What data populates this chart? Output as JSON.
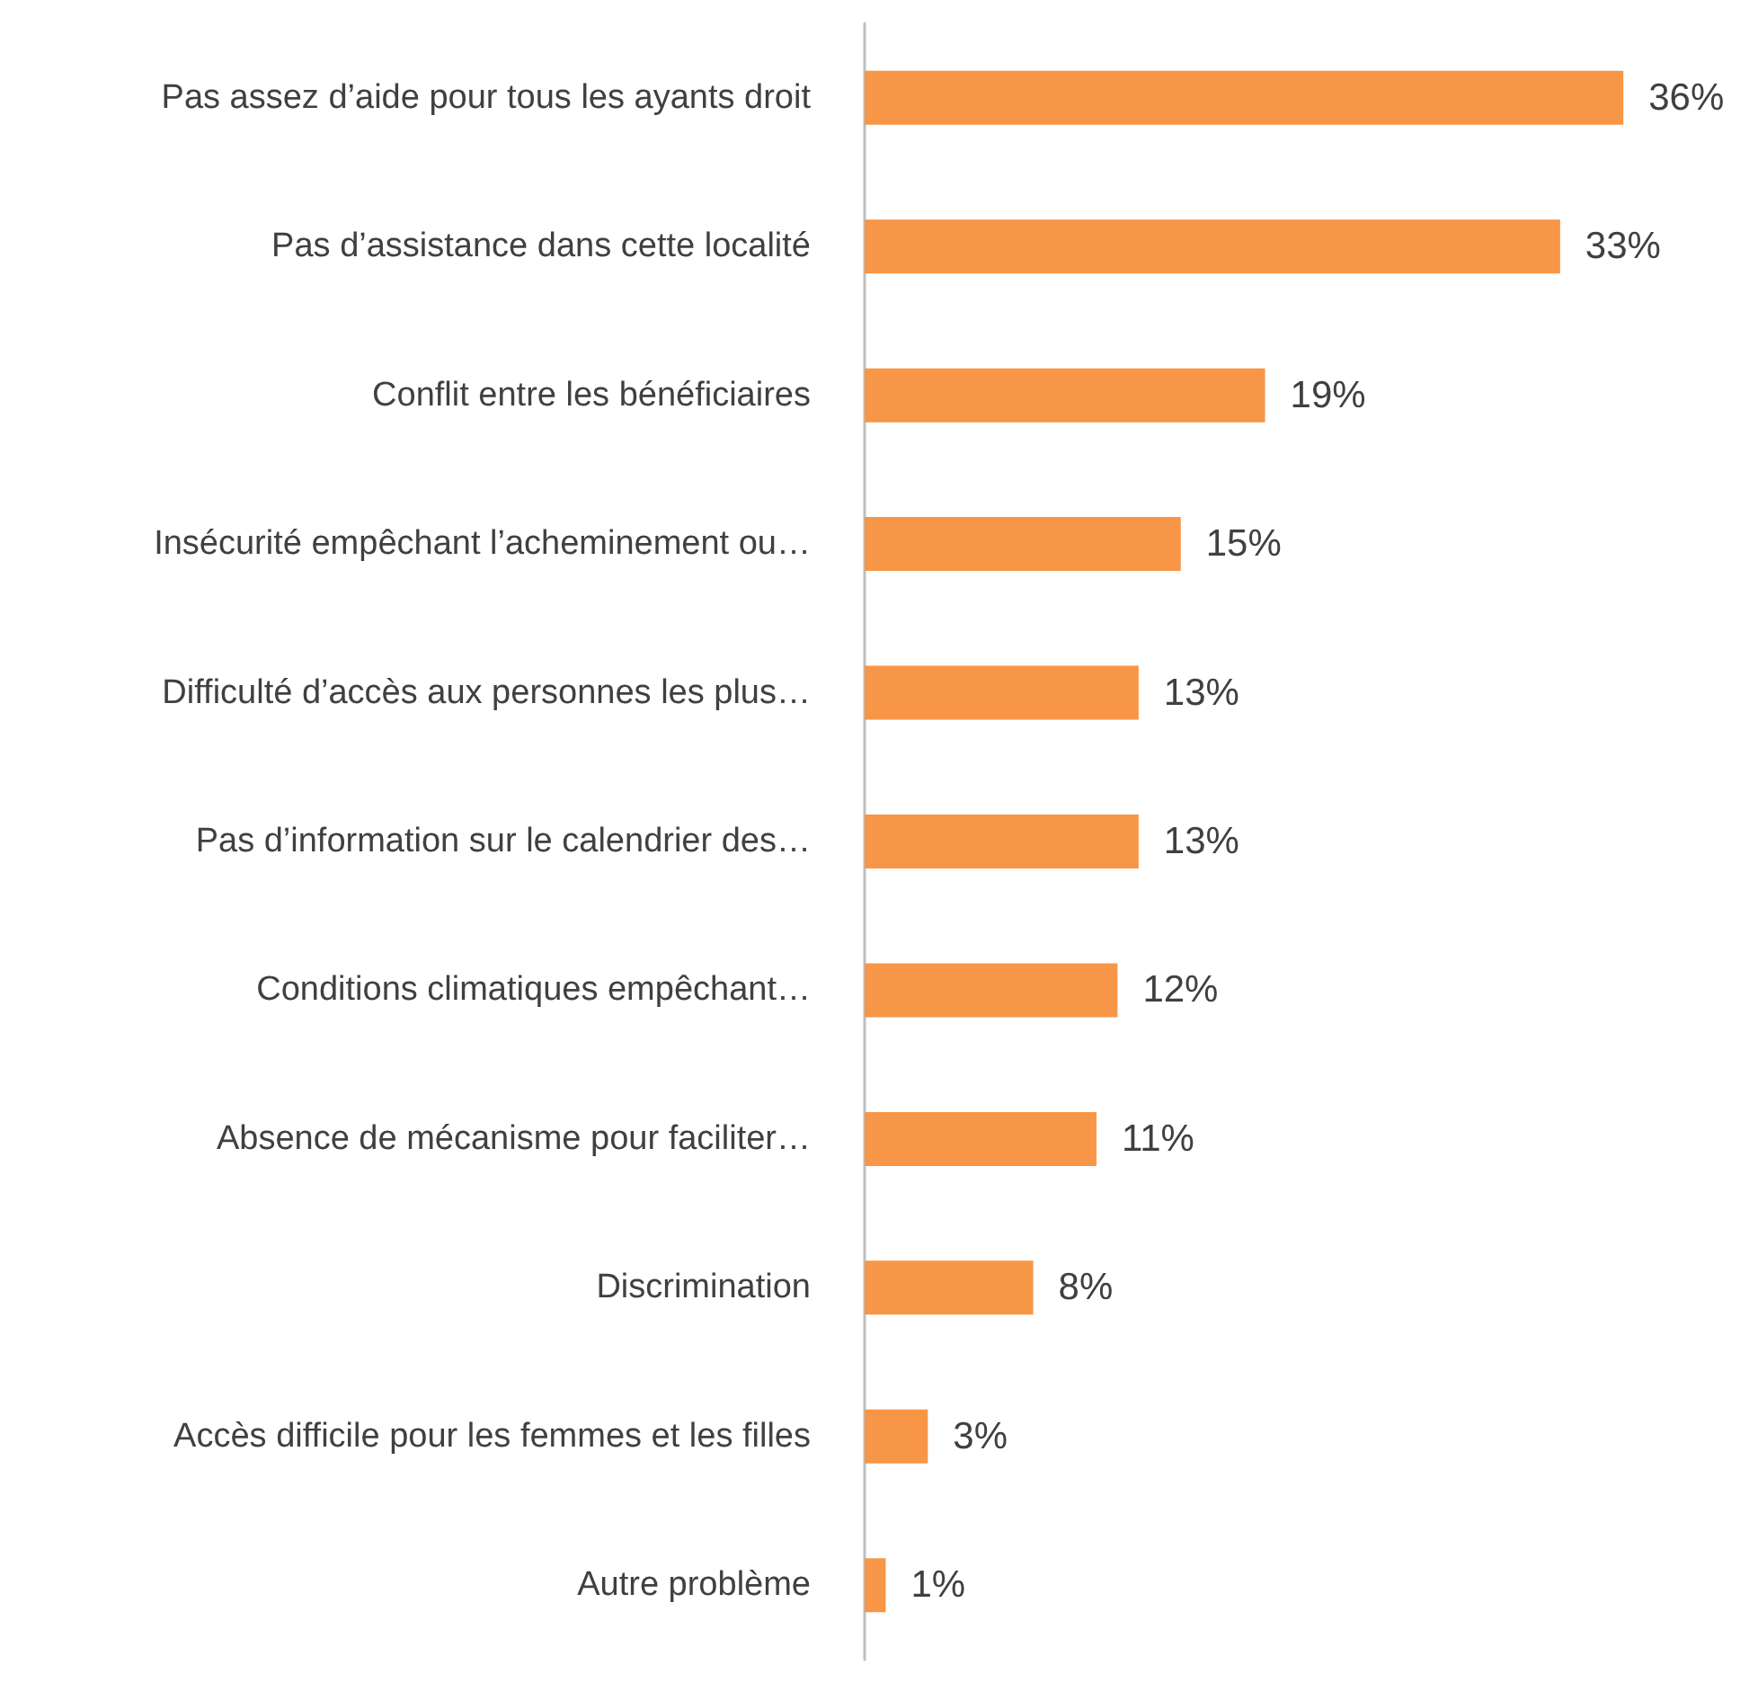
{
  "chart_data": {
    "type": "bar",
    "orientation": "horizontal",
    "categories": [
      "Pas assez d’aide pour tous les ayants droit",
      "Pas d’assistance dans cette localité",
      "Conflit entre les bénéficiaires",
      "Insécurité empêchant l’acheminement ou…",
      "Difficulté d’accès aux personnes les plus…",
      "Pas d’information sur le calendrier des…",
      "Conditions climatiques empêchant…",
      "Absence de mécanisme pour faciliter…",
      "Discrimination",
      "Accès difficile pour les femmes et les filles",
      "Autre problème"
    ],
    "values": [
      36,
      33,
      19,
      15,
      13,
      13,
      12,
      11,
      8,
      3,
      1
    ],
    "value_labels": [
      "36%",
      "33%",
      "19%",
      "15%",
      "13%",
      "13%",
      "12%",
      "11%",
      "8%",
      "3%",
      "1%"
    ],
    "color": "#f79646",
    "tick_labels": "y"
  }
}
